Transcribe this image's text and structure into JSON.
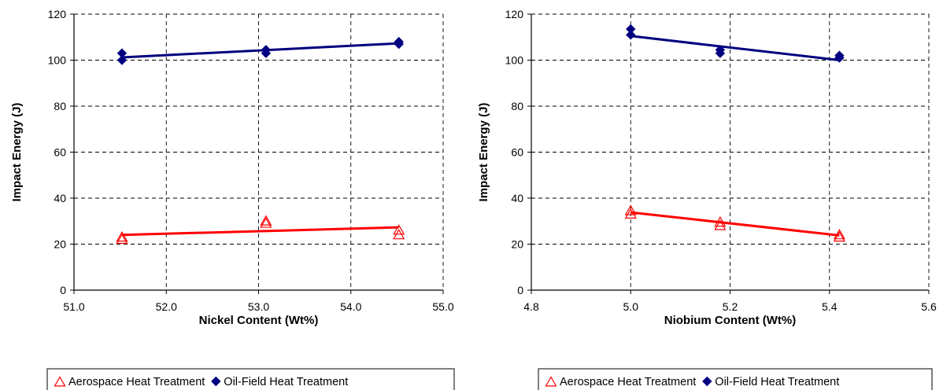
{
  "colors": {
    "aerospace": "#ff0000",
    "oilfield": "#000080",
    "grid": "#000000",
    "axis": "#000000"
  },
  "legend": {
    "aerospace_label": "Aerospace Heat Treatment",
    "oilfield_label": "Oil-Field Heat Treatment",
    "aerospace_marker": "open-triangle",
    "oilfield_marker": "filled-diamond",
    "placement": "bottom"
  },
  "chart_data": [
    {
      "type": "scatter",
      "xlabel": "Nickel Content (Wt%)",
      "ylabel": "Impact Energy (J)",
      "xlim": [
        51.0,
        55.0
      ],
      "ylim": [
        0,
        120
      ],
      "xticks": [
        51.0,
        52.0,
        53.0,
        54.0,
        55.0
      ],
      "xtick_labels": [
        "51.0",
        "52.0",
        "53.0",
        "54.0",
        "55.0"
      ],
      "yticks": [
        0,
        20,
        40,
        60,
        80,
        100,
        120
      ],
      "ytick_labels": [
        "0",
        "20",
        "40",
        "60",
        "80",
        "100",
        "120"
      ],
      "grid": "dashed",
      "series": [
        {
          "name": "Aerospace Heat Treatment",
          "marker": "open-triangle",
          "points": [
            [
              51.52,
              22
            ],
            [
              51.52,
              23
            ],
            [
              53.08,
              29
            ],
            [
              53.08,
              30
            ],
            [
              54.52,
              24
            ],
            [
              54.52,
              26
            ]
          ],
          "trend": [
            [
              51.52,
              24
            ],
            [
              54.52,
              27.3
            ]
          ]
        },
        {
          "name": "Oil-Field Heat Treatment",
          "marker": "filled-diamond",
          "points": [
            [
              51.52,
              100
            ],
            [
              51.52,
              103
            ],
            [
              53.08,
              103
            ],
            [
              53.08,
              104.5
            ],
            [
              54.52,
              107
            ],
            [
              54.52,
              108
            ]
          ],
          "trend": [
            [
              51.52,
              101.2
            ],
            [
              54.52,
              107.3
            ]
          ]
        }
      ]
    },
    {
      "type": "scatter",
      "xlabel": "Niobium Content (Wt%)",
      "ylabel": "Impact Energy (J)",
      "xlim": [
        4.8,
        5.6
      ],
      "ylim": [
        0,
        120
      ],
      "xticks": [
        4.8,
        5.0,
        5.2,
        5.4,
        5.6
      ],
      "xtick_labels": [
        "4.8",
        "5.0",
        "5.2",
        "5.4",
        "5.6"
      ],
      "yticks": [
        0,
        20,
        40,
        60,
        80,
        100,
        120
      ],
      "ytick_labels": [
        "0",
        "20",
        "40",
        "60",
        "80",
        "100",
        "120"
      ],
      "grid": "dashed",
      "series": [
        {
          "name": "Aerospace Heat Treatment",
          "marker": "open-triangle",
          "points": [
            [
              5.0,
              33
            ],
            [
              5.0,
              34.5
            ],
            [
              5.18,
              28
            ],
            [
              5.18,
              29.5
            ],
            [
              5.42,
              23
            ],
            [
              5.42,
              24
            ]
          ],
          "trend": [
            [
              5.0,
              33.8
            ],
            [
              5.42,
              23.8
            ]
          ]
        },
        {
          "name": "Oil-Field Heat Treatment",
          "marker": "filled-diamond",
          "points": [
            [
              5.0,
              111
            ],
            [
              5.0,
              113.5
            ],
            [
              5.18,
              103
            ],
            [
              5.18,
              104.5
            ],
            [
              5.42,
              101
            ],
            [
              5.42,
              102
            ]
          ],
          "trend": [
            [
              5.0,
              110.5
            ],
            [
              5.42,
              100
            ]
          ]
        }
      ]
    }
  ]
}
